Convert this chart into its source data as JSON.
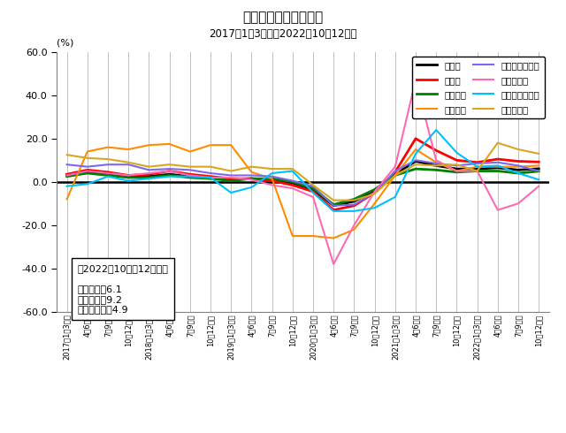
{
  "title": "売上高（前年同期比）",
  "subtitle": "2017年1～3月期～2022年10～12月期",
  "ylabel": "(%)",
  "ylim": [
    -60.0,
    60.0
  ],
  "yticks": [
    -60.0,
    -40.0,
    -20.0,
    0.0,
    20.0,
    40.0,
    60.0
  ],
  "annotation_title": "（2022年10月～12月期）",
  "annotation_lines": [
    "全産業：6.1",
    "製造業：9.2",
    "非製造業：4.9"
  ],
  "x_labels": [
    "2017年1～3月期",
    "4～6月期",
    "7～9月期",
    "10～12月期",
    "2018年1～3月期",
    "4～6月期",
    "7～9月期",
    "10～12月期",
    "2019年1～3月期",
    "4～6月期",
    "7～9月期",
    "10～12月期",
    "2020年1～3月期",
    "4～6月期",
    "7～9月期",
    "10～12月期",
    "2021年1～3月期",
    "4～6月期",
    "7～9月期",
    "10～12月期",
    "2022年1～3月期",
    "4～6月期",
    "7～9月期",
    "10～12月期"
  ],
  "series": [
    {
      "label": "全産業",
      "color": "#000000",
      "linewidth": 2.0,
      "values": [
        3.0,
        4.5,
        3.5,
        2.5,
        2.5,
        3.5,
        2.5,
        2.0,
        1.0,
        1.5,
        1.0,
        -0.5,
        -3.5,
        -11.0,
        -9.0,
        -4.0,
        3.5,
        9.5,
        7.5,
        6.0,
        6.0,
        6.5,
        5.5,
        6.1
      ]
    },
    {
      "label": "製造業",
      "color": "#FF0000",
      "linewidth": 2.0,
      "values": [
        3.5,
        5.5,
        4.5,
        3.0,
        3.5,
        5.0,
        3.5,
        2.5,
        1.5,
        1.5,
        0.5,
        -1.5,
        -4.5,
        -13.0,
        -11.0,
        -5.0,
        4.5,
        20.0,
        14.5,
        10.0,
        9.0,
        10.5,
        9.5,
        9.2
      ]
    },
    {
      "label": "非製造業",
      "color": "#008000",
      "linewidth": 2.0,
      "values": [
        2.5,
        4.0,
        3.0,
        2.0,
        2.0,
        3.0,
        2.0,
        1.5,
        0.5,
        1.5,
        1.5,
        0.0,
        -3.0,
        -10.5,
        -8.0,
        -3.5,
        3.0,
        6.0,
        5.5,
        4.5,
        5.0,
        5.0,
        4.0,
        4.9
      ]
    },
    {
      "label": "金属製品",
      "color": "#FF8C00",
      "linewidth": 1.5,
      "values": [
        -8.0,
        14.0,
        16.0,
        15.0,
        17.0,
        17.5,
        14.0,
        17.0,
        17.0,
        4.5,
        1.5,
        -25.0,
        -25.0,
        -26.0,
        -22.0,
        -10.0,
        3.0,
        15.0,
        9.0,
        5.0,
        7.0,
        7.0,
        7.0,
        7.5
      ]
    },
    {
      "label": "卸売業、小売業",
      "color": "#7B68EE",
      "linewidth": 1.5,
      "values": [
        8.0,
        7.0,
        8.0,
        8.0,
        5.5,
        6.0,
        5.5,
        4.0,
        3.0,
        3.0,
        2.5,
        0.5,
        -2.0,
        -11.0,
        -10.5,
        -5.0,
        5.0,
        10.0,
        8.5,
        7.5,
        8.5,
        9.0,
        7.5,
        5.0
      ]
    },
    {
      "label": "輸送用機械",
      "color": "#FF69B4",
      "linewidth": 1.5,
      "values": [
        3.0,
        5.0,
        4.0,
        3.0,
        4.0,
        5.0,
        3.0,
        2.0,
        2.0,
        1.0,
        -1.5,
        -3.0,
        -7.0,
        -38.0,
        -20.0,
        -4.5,
        7.0,
        47.0,
        10.0,
        5.0,
        5.0,
        -13.0,
        -10.0,
        -2.0
      ]
    },
    {
      "label": "運輸業、郵便業",
      "color": "#00BFFF",
      "linewidth": 1.5,
      "values": [
        -2.0,
        -1.0,
        2.5,
        0.5,
        1.5,
        2.5,
        2.5,
        2.0,
        -5.0,
        -2.5,
        4.0,
        5.0,
        -5.0,
        -13.5,
        -13.5,
        -12.0,
        -7.0,
        13.0,
        24.0,
        13.5,
        7.0,
        7.5,
        4.0,
        1.0
      ]
    },
    {
      "label": "サービス業",
      "color": "#DAA520",
      "linewidth": 1.5,
      "values": [
        12.5,
        11.0,
        10.5,
        9.0,
        7.0,
        8.0,
        7.0,
        7.0,
        5.0,
        7.0,
        6.0,
        6.0,
        -1.5,
        -8.5,
        -8.5,
        -5.5,
        3.0,
        8.0,
        7.5,
        8.0,
        5.0,
        18.0,
        15.0,
        13.0
      ]
    }
  ]
}
